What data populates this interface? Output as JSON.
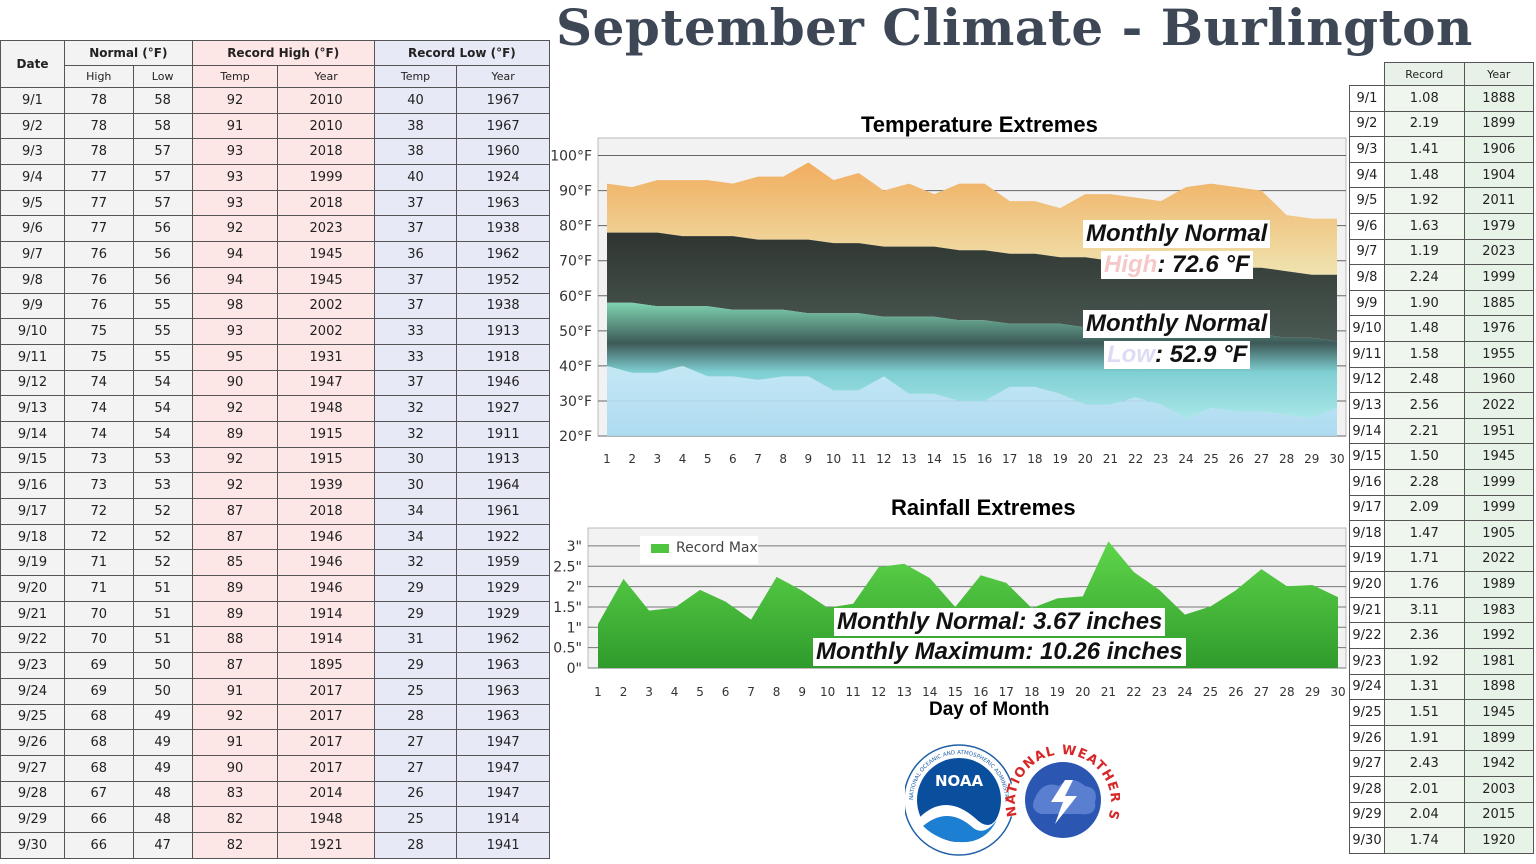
{
  "page_title": "September Climate - Burlington",
  "temp_table": {
    "headers": {
      "date": "Date",
      "normal": "Normal (°F)",
      "record_high": "Record High (°F)",
      "record_low": "Record Low (°F)",
      "sub": [
        "High",
        "Low",
        "Temp",
        "Year",
        "Temp",
        "Year"
      ]
    },
    "rows": [
      [
        "9/1",
        "78",
        "58",
        "92",
        "2010",
        "40",
        "1967"
      ],
      [
        "9/2",
        "78",
        "58",
        "91",
        "2010",
        "38",
        "1967"
      ],
      [
        "9/3",
        "78",
        "57",
        "93",
        "2018",
        "38",
        "1960"
      ],
      [
        "9/4",
        "77",
        "57",
        "93",
        "1999",
        "40",
        "1924"
      ],
      [
        "9/5",
        "77",
        "57",
        "93",
        "2018",
        "37",
        "1963"
      ],
      [
        "9/6",
        "77",
        "56",
        "92",
        "2023",
        "37",
        "1938"
      ],
      [
        "9/7",
        "76",
        "56",
        "94",
        "1945",
        "36",
        "1962"
      ],
      [
        "9/8",
        "76",
        "56",
        "94",
        "1945",
        "37",
        "1952"
      ],
      [
        "9/9",
        "76",
        "55",
        "98",
        "2002",
        "37",
        "1938"
      ],
      [
        "9/10",
        "75",
        "55",
        "93",
        "2002",
        "33",
        "1913"
      ],
      [
        "9/11",
        "75",
        "55",
        "95",
        "1931",
        "33",
        "1918"
      ],
      [
        "9/12",
        "74",
        "54",
        "90",
        "1947",
        "37",
        "1946"
      ],
      [
        "9/13",
        "74",
        "54",
        "92",
        "1948",
        "32",
        "1927"
      ],
      [
        "9/14",
        "74",
        "54",
        "89",
        "1915",
        "32",
        "1911"
      ],
      [
        "9/15",
        "73",
        "53",
        "92",
        "1915",
        "30",
        "1913"
      ],
      [
        "9/16",
        "73",
        "53",
        "92",
        "1939",
        "30",
        "1964"
      ],
      [
        "9/17",
        "72",
        "52",
        "87",
        "2018",
        "34",
        "1961"
      ],
      [
        "9/18",
        "72",
        "52",
        "87",
        "1946",
        "34",
        "1922"
      ],
      [
        "9/19",
        "71",
        "52",
        "85",
        "1946",
        "32",
        "1959"
      ],
      [
        "9/20",
        "71",
        "51",
        "89",
        "1946",
        "29",
        "1929"
      ],
      [
        "9/21",
        "70",
        "51",
        "89",
        "1914",
        "29",
        "1929"
      ],
      [
        "9/22",
        "70",
        "51",
        "88",
        "1914",
        "31",
        "1962"
      ],
      [
        "9/23",
        "69",
        "50",
        "87",
        "1895",
        "29",
        "1963"
      ],
      [
        "9/24",
        "69",
        "50",
        "91",
        "2017",
        "25",
        "1963"
      ],
      [
        "9/25",
        "68",
        "49",
        "92",
        "2017",
        "28",
        "1963"
      ],
      [
        "9/26",
        "68",
        "49",
        "91",
        "2017",
        "27",
        "1947"
      ],
      [
        "9/27",
        "68",
        "49",
        "90",
        "2017",
        "27",
        "1947"
      ],
      [
        "9/28",
        "67",
        "48",
        "83",
        "2014",
        "26",
        "1947"
      ],
      [
        "9/29",
        "66",
        "48",
        "82",
        "1948",
        "25",
        "1914"
      ],
      [
        "9/30",
        "66",
        "47",
        "82",
        "1921",
        "28",
        "1941"
      ]
    ]
  },
  "rain_table": {
    "headers": [
      "Record",
      "Year"
    ],
    "rows": [
      [
        "9/1",
        "1.08",
        "1888"
      ],
      [
        "9/2",
        "2.19",
        "1899"
      ],
      [
        "9/3",
        "1.41",
        "1906"
      ],
      [
        "9/4",
        "1.48",
        "1904"
      ],
      [
        "9/5",
        "1.92",
        "2011"
      ],
      [
        "9/6",
        "1.63",
        "1979"
      ],
      [
        "9/7",
        "1.19",
        "2023"
      ],
      [
        "9/8",
        "2.24",
        "1999"
      ],
      [
        "9/9",
        "1.90",
        "1885"
      ],
      [
        "9/10",
        "1.48",
        "1976"
      ],
      [
        "9/11",
        "1.58",
        "1955"
      ],
      [
        "9/12",
        "2.48",
        "1960"
      ],
      [
        "9/13",
        "2.56",
        "2022"
      ],
      [
        "9/14",
        "2.21",
        "1951"
      ],
      [
        "9/15",
        "1.50",
        "1945"
      ],
      [
        "9/16",
        "2.28",
        "1999"
      ],
      [
        "9/17",
        "2.09",
        "1999"
      ],
      [
        "9/18",
        "1.47",
        "1905"
      ],
      [
        "9/19",
        "1.71",
        "2022"
      ],
      [
        "9/20",
        "1.76",
        "1989"
      ],
      [
        "9/21",
        "3.11",
        "1983"
      ],
      [
        "9/22",
        "2.36",
        "1992"
      ],
      [
        "9/23",
        "1.92",
        "1981"
      ],
      [
        "9/24",
        "1.31",
        "1898"
      ],
      [
        "9/25",
        "1.51",
        "1945"
      ],
      [
        "9/26",
        "1.91",
        "1899"
      ],
      [
        "9/27",
        "2.43",
        "1942"
      ],
      [
        "9/28",
        "2.01",
        "2003"
      ],
      [
        "9/29",
        "2.04",
        "2015"
      ],
      [
        "9/30",
        "1.74",
        "1920"
      ]
    ]
  },
  "overlays": {
    "temp_high_prefix": "Monthly Normal",
    "temp_high_word": "High",
    "temp_high_value": ": 72.6 °F",
    "temp_low_prefix": "Monthly Normal",
    "temp_low_word": "Low",
    "temp_low_value": ": 52.9 °F",
    "rain_normal": "Monthly Normal: 3.67 inches",
    "rain_max": "Monthly Maximum: 10.26 inches"
  },
  "logos": {
    "noaa_text": "NOAA",
    "nws_text": "NATIONAL WEATHER SERVICE",
    "noaa_ring": "NATIONAL OCEANIC AND ATMOSPHERIC ADMINISTRATION · U.S. DEPARTMENT OF COMMERCE"
  },
  "colors": {
    "record_high": "#f0b060",
    "normal_band": "#3a3f3c",
    "record_low": "#8fd8d6",
    "rain": "#4fc43f",
    "title": "#3d4756"
  },
  "chart_data": [
    {
      "type": "area",
      "title": "Temperature Extremes",
      "x": [
        1,
        2,
        3,
        4,
        5,
        6,
        7,
        8,
        9,
        10,
        11,
        12,
        13,
        14,
        15,
        16,
        17,
        18,
        19,
        20,
        21,
        22,
        23,
        24,
        25,
        26,
        27,
        28,
        29,
        30
      ],
      "xlabel": "",
      "ylabel": "",
      "y_tick_labels": [
        "20°F",
        "30°F",
        "40°F",
        "50°F",
        "60°F",
        "70°F",
        "80°F",
        "90°F",
        "100°F"
      ],
      "ylim": [
        20,
        105
      ],
      "grid": true,
      "series": [
        {
          "values": [
            92,
            91,
            93,
            93,
            93,
            92,
            94,
            94,
            98,
            93,
            95,
            90,
            92,
            89,
            92,
            92,
            87,
            87,
            85,
            89,
            89,
            88,
            87,
            91,
            92,
            91,
            90,
            83,
            82,
            82
          ]
        },
        {
          "values": [
            78,
            78,
            78,
            77,
            77,
            77,
            76,
            76,
            76,
            75,
            75,
            74,
            74,
            74,
            73,
            73,
            72,
            72,
            71,
            71,
            70,
            70,
            69,
            69,
            68,
            68,
            68,
            67,
            66,
            66
          ]
        },
        {
          "values": [
            58,
            58,
            57,
            57,
            57,
            56,
            56,
            56,
            55,
            55,
            55,
            54,
            54,
            54,
            53,
            53,
            52,
            52,
            52,
            51,
            51,
            51,
            50,
            50,
            49,
            49,
            49,
            48,
            48,
            47
          ]
        },
        {
          "values": [
            40,
            38,
            38,
            40,
            37,
            37,
            36,
            37,
            37,
            33,
            33,
            37,
            32,
            32,
            30,
            30,
            34,
            34,
            32,
            29,
            29,
            31,
            29,
            25,
            28,
            27,
            27,
            26,
            25,
            28
          ]
        }
      ]
    },
    {
      "type": "area",
      "title": "Rainfall Extremes",
      "x": [
        1,
        2,
        3,
        4,
        5,
        6,
        7,
        8,
        9,
        10,
        11,
        12,
        13,
        14,
        15,
        16,
        17,
        18,
        19,
        20,
        21,
        22,
        23,
        24,
        25,
        26,
        27,
        28,
        29,
        30
      ],
      "xlabel": "Day of Month",
      "ylabel": "",
      "y_tick_labels": [
        "0\"",
        "0.5\"",
        "1\"",
        "1.5\"",
        "2\"",
        "2.5\"",
        "3\""
      ],
      "ylim": [
        0,
        3.3
      ],
      "grid": true,
      "legend": "top-left",
      "series": [
        {
          "name": "Record Max",
          "values": [
            1.08,
            2.19,
            1.41,
            1.48,
            1.92,
            1.63,
            1.19,
            2.24,
            1.9,
            1.48,
            1.58,
            2.48,
            2.56,
            2.21,
            1.5,
            2.28,
            2.09,
            1.47,
            1.71,
            1.76,
            3.11,
            2.36,
            1.92,
            1.31,
            1.51,
            1.91,
            2.43,
            2.01,
            2.04,
            1.74
          ]
        }
      ]
    }
  ]
}
